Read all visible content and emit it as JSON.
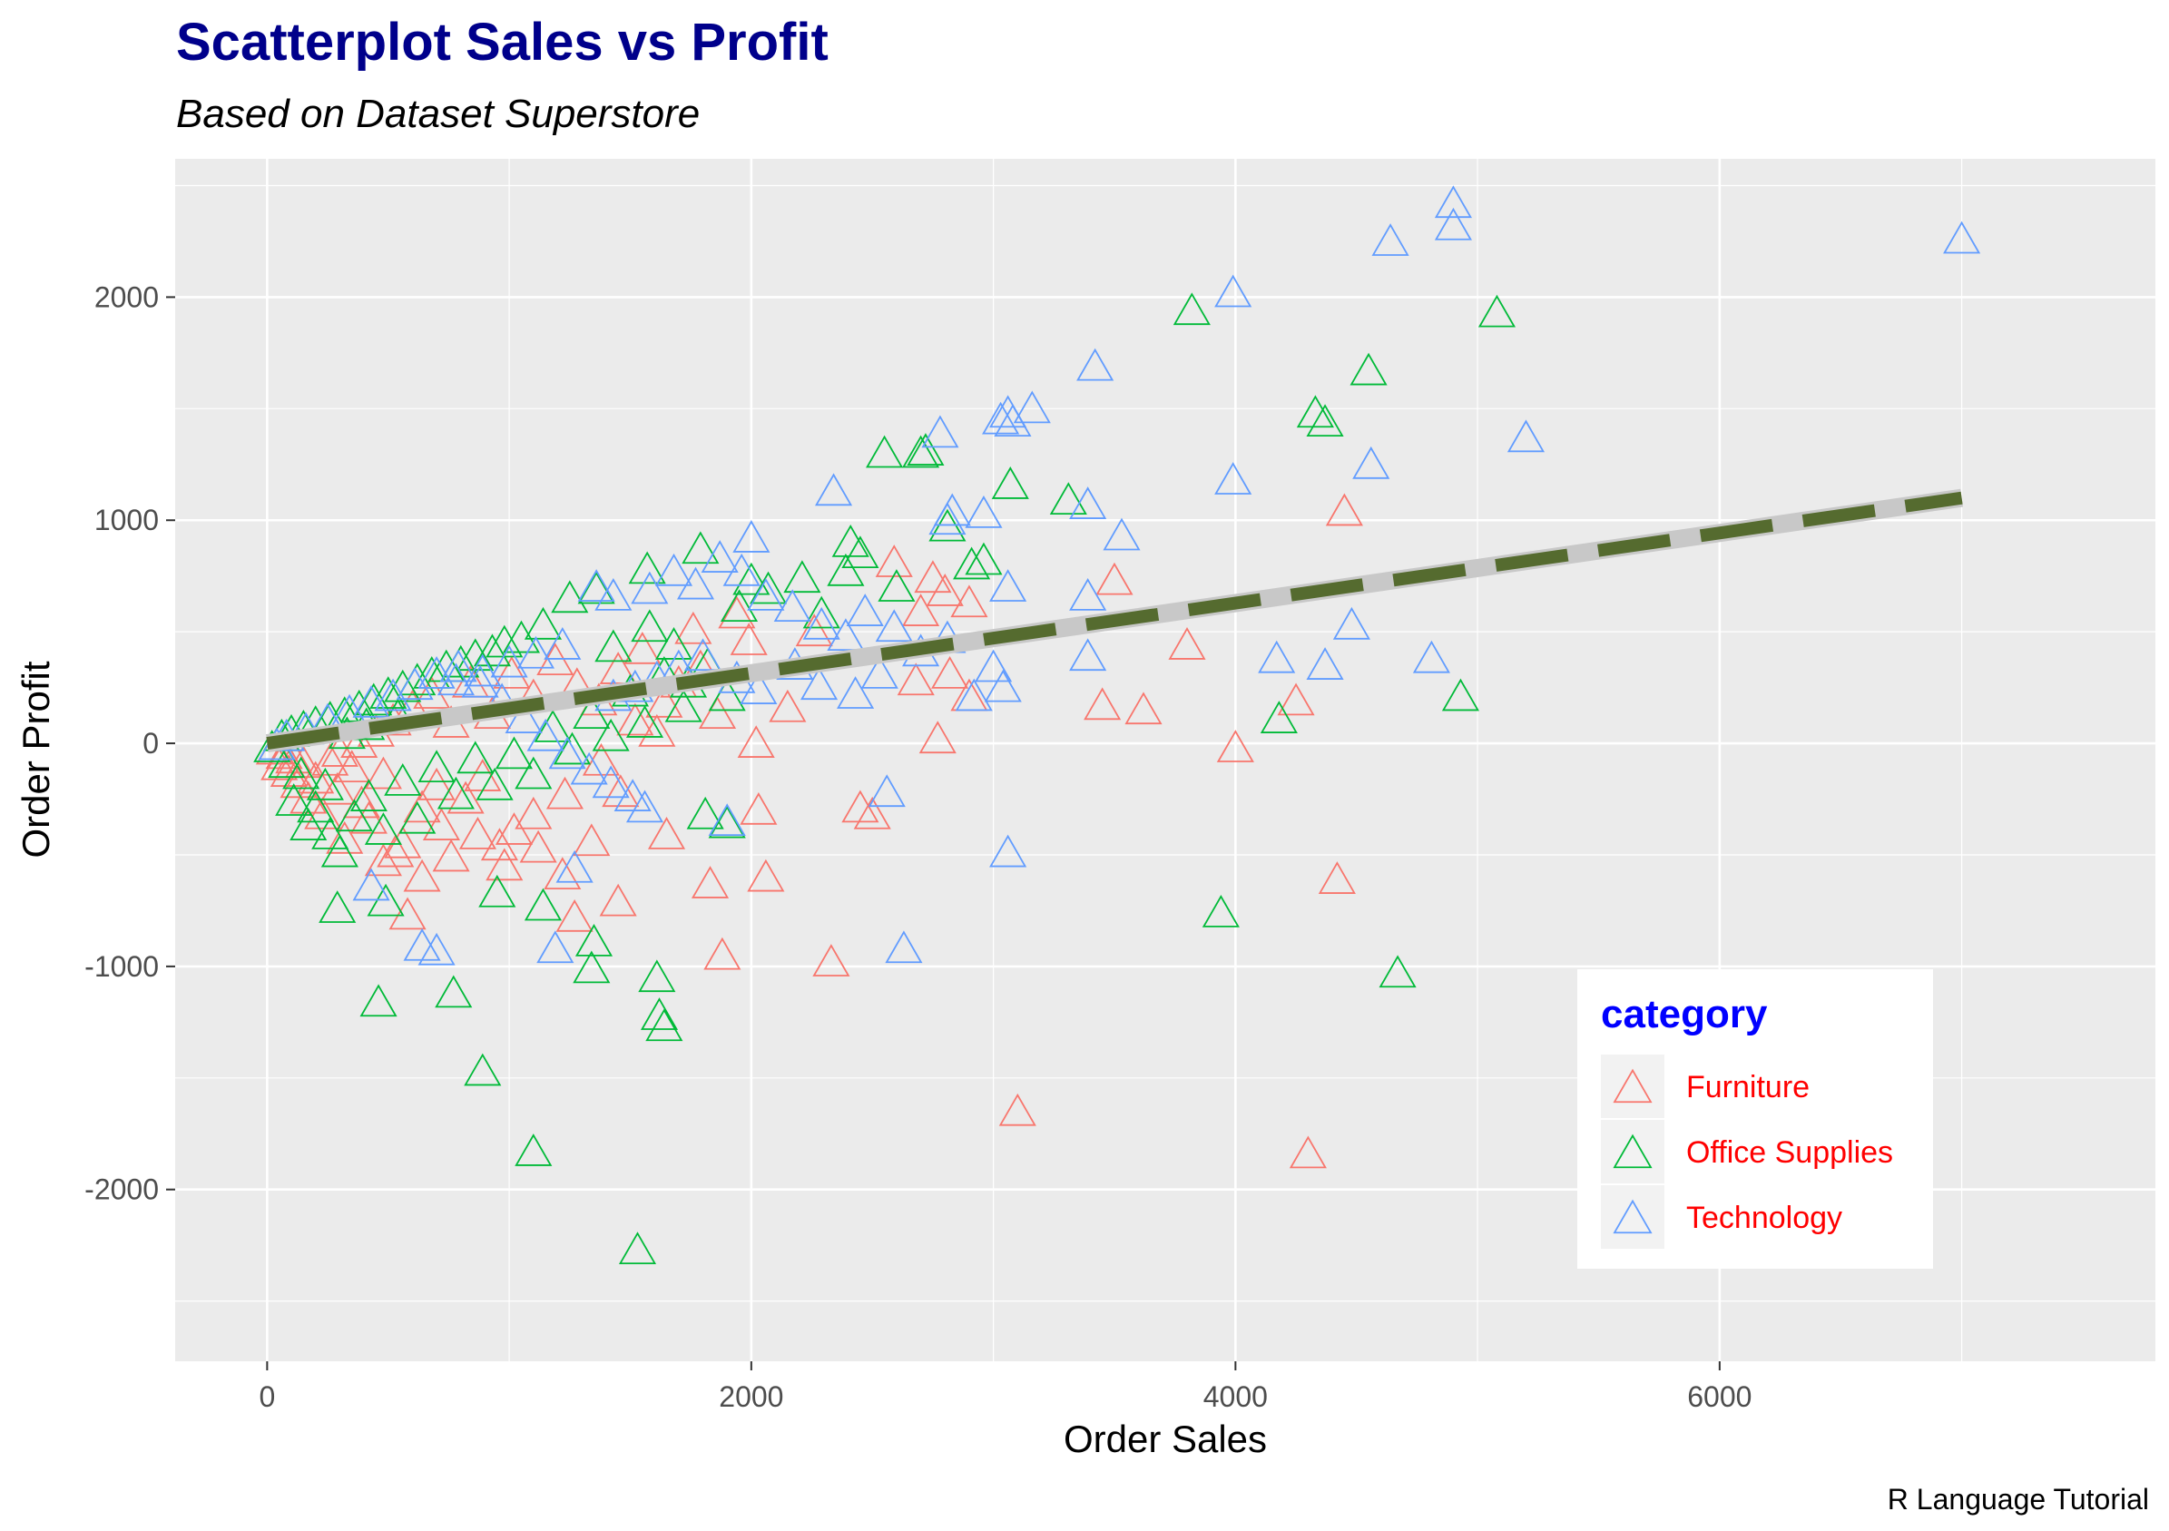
{
  "chart_data": {
    "type": "scatter",
    "title": "Scatterplot Sales vs Profit",
    "subtitle": "Based on Dataset Superstore",
    "xlabel": "Order Sales",
    "ylabel": "Order Profit",
    "caption": "R Language Tutorial",
    "xlim": [
      -380,
      7800
    ],
    "ylim": [
      -2770,
      2620
    ],
    "x_ticks": [
      0,
      2000,
      4000,
      6000
    ],
    "y_ticks": [
      -2000,
      -1000,
      0,
      1000,
      2000
    ],
    "grid": true,
    "marker": "open-triangle",
    "legend": {
      "title": "category",
      "position": "bottom-right"
    },
    "trend_line": {
      "x": [
        0,
        7000
      ],
      "y": [
        0,
        1100
      ],
      "style": "dashed"
    },
    "colors": {
      "title": "#00008b",
      "legend_title": "#0000ff",
      "legend_text": "#ff0000",
      "panel": "#ebebeb",
      "grid": "#ffffff",
      "trend_dash": "#556b2f",
      "trend_band": "#c8c8c8"
    },
    "series": [
      {
        "name": "Furniture",
        "color": "#f8766d",
        "points": [
          [
            4450,
            1030
          ],
          [
            3500,
            720
          ],
          [
            3800,
            430
          ],
          [
            3450,
            160
          ],
          [
            3620,
            140
          ],
          [
            4250,
            180
          ],
          [
            4000,
            -30
          ],
          [
            4420,
            -620
          ],
          [
            4300,
            -1850
          ],
          [
            3100,
            -1660
          ],
          [
            2330,
            -990
          ],
          [
            1880,
            -960
          ],
          [
            2060,
            -610
          ],
          [
            1830,
            -640
          ],
          [
            1650,
            -420
          ],
          [
            2030,
            -310
          ],
          [
            2020,
            -10
          ],
          [
            2450,
            -300
          ],
          [
            2500,
            -330
          ],
          [
            2750,
            730
          ],
          [
            2800,
            670
          ],
          [
            2900,
            620
          ],
          [
            2700,
            580
          ],
          [
            2900,
            200
          ],
          [
            2770,
            10
          ],
          [
            2820,
            300
          ],
          [
            2680,
            270
          ],
          [
            2590,
            800
          ],
          [
            2260,
            490
          ],
          [
            2150,
            150
          ],
          [
            1990,
            450
          ],
          [
            1940,
            570
          ],
          [
            1760,
            500
          ],
          [
            1550,
            410
          ],
          [
            1640,
            170
          ],
          [
            1460,
            -230
          ],
          [
            1340,
            -450
          ],
          [
            1450,
            -720
          ],
          [
            1270,
            -790
          ],
          [
            1380,
            -90
          ],
          [
            1230,
            -240
          ],
          [
            1100,
            -330
          ],
          [
            1020,
            -400
          ],
          [
            960,
            -470
          ],
          [
            890,
            -160
          ],
          [
            820,
            -260
          ],
          [
            760,
            -520
          ],
          [
            700,
            -200
          ],
          [
            640,
            -300
          ],
          [
            580,
            -780
          ],
          [
            530,
            -500
          ],
          [
            480,
            -150
          ],
          [
            420,
            -350
          ],
          [
            390,
            -280
          ],
          [
            350,
            -120
          ],
          [
            320,
            -440
          ],
          [
            290,
            -220
          ],
          [
            260,
            -90
          ],
          [
            230,
            -330
          ],
          [
            200,
            -170
          ],
          [
            170,
            -260
          ],
          [
            150,
            -100
          ],
          [
            130,
            -190
          ],
          [
            110,
            -80
          ],
          [
            90,
            -140
          ],
          [
            70,
            -60
          ],
          [
            50,
            -110
          ],
          [
            30,
            -40
          ],
          [
            300,
            -50
          ],
          [
            380,
            -10
          ],
          [
            450,
            40
          ],
          [
            520,
            90
          ],
          [
            600,
            150
          ],
          [
            680,
            210
          ],
          [
            760,
            80
          ],
          [
            840,
            260
          ],
          [
            930,
            120
          ],
          [
            1010,
            300
          ],
          [
            1100,
            200
          ],
          [
            1190,
            360
          ],
          [
            1280,
            250
          ],
          [
            1370,
            180
          ],
          [
            1450,
            320
          ],
          [
            1520,
            90
          ],
          [
            1610,
            40
          ],
          [
            1700,
            260
          ],
          [
            1790,
            330
          ],
          [
            1860,
            120
          ],
          [
            1220,
            -600
          ],
          [
            1120,
            -480
          ],
          [
            980,
            -560
          ],
          [
            870,
            -420
          ],
          [
            720,
            -380
          ],
          [
            640,
            -610
          ],
          [
            560,
            -460
          ],
          [
            480,
            -540
          ]
        ]
      },
      {
        "name": "Office Supplies",
        "color": "#00ba38",
        "points": [
          [
            5080,
            1920
          ],
          [
            3820,
            1930
          ],
          [
            4550,
            1660
          ],
          [
            4330,
            1470
          ],
          [
            4370,
            1430
          ],
          [
            3070,
            1150
          ],
          [
            3310,
            1080
          ],
          [
            2550,
            1290
          ],
          [
            2700,
            1290
          ],
          [
            2720,
            1300
          ],
          [
            2910,
            790
          ],
          [
            2960,
            810
          ],
          [
            2810,
            960
          ],
          [
            2410,
            890
          ],
          [
            2450,
            840
          ],
          [
            3940,
            -770
          ],
          [
            4670,
            -1040
          ],
          [
            4930,
            200
          ],
          [
            4180,
            100
          ],
          [
            1530,
            -2280
          ],
          [
            1100,
            -1840
          ],
          [
            890,
            -1480
          ],
          [
            770,
            -1130
          ],
          [
            460,
            -1170
          ],
          [
            1610,
            -1060
          ],
          [
            1620,
            -1230
          ],
          [
            1640,
            -1280
          ],
          [
            1350,
            -900
          ],
          [
            1340,
            -1020
          ],
          [
            1140,
            -740
          ],
          [
            950,
            -680
          ],
          [
            490,
            -720
          ],
          [
            290,
            -750
          ],
          [
            1810,
            -330
          ],
          [
            1900,
            -370
          ],
          [
            1790,
            860
          ],
          [
            1570,
            770
          ],
          [
            1580,
            510
          ],
          [
            2000,
            720
          ],
          [
            2070,
            680
          ],
          [
            2210,
            730
          ],
          [
            2290,
            570
          ],
          [
            2390,
            760
          ],
          [
            2600,
            690
          ],
          [
            1950,
            600
          ],
          [
            1740,
            260
          ],
          [
            1680,
            430
          ],
          [
            1430,
            420
          ],
          [
            1360,
            680
          ],
          [
            1250,
            640
          ],
          [
            1140,
            520
          ],
          [
            1050,
            460
          ],
          [
            980,
            440
          ],
          [
            930,
            400
          ],
          [
            860,
            380
          ],
          [
            800,
            350
          ],
          [
            740,
            330
          ],
          [
            680,
            300
          ],
          [
            620,
            270
          ],
          [
            560,
            240
          ],
          [
            500,
            210
          ],
          [
            440,
            180
          ],
          [
            380,
            150
          ],
          [
            320,
            120
          ],
          [
            260,
            100
          ],
          [
            200,
            80
          ],
          [
            150,
            60
          ],
          [
            100,
            40
          ],
          [
            60,
            20
          ],
          [
            20,
            -30
          ],
          [
            80,
            -100
          ],
          [
            140,
            -150
          ],
          [
            200,
            -300
          ],
          [
            260,
            -420
          ],
          [
            300,
            -500
          ],
          [
            360,
            -340
          ],
          [
            420,
            -250
          ],
          [
            480,
            -400
          ],
          [
            560,
            -180
          ],
          [
            620,
            -350
          ],
          [
            700,
            -120
          ],
          [
            780,
            -240
          ],
          [
            860,
            -80
          ],
          [
            940,
            -200
          ],
          [
            1020,
            -60
          ],
          [
            1100,
            -150
          ],
          [
            1180,
            60
          ],
          [
            1260,
            -40
          ],
          [
            1340,
            120
          ],
          [
            1420,
            20
          ],
          [
            1500,
            220
          ],
          [
            1560,
            80
          ],
          [
            1640,
            300
          ],
          [
            1720,
            150
          ],
          [
            1820,
            340
          ],
          [
            1900,
            200
          ],
          [
            170,
            -380
          ],
          [
            110,
            -270
          ],
          [
            240,
            -200
          ],
          [
            330,
            30
          ],
          [
            410,
            70
          ],
          [
            540,
            110
          ]
        ]
      },
      {
        "name": "Technology",
        "color": "#619cff",
        "points": [
          [
            7000,
            2250
          ],
          [
            4900,
            2410
          ],
          [
            4900,
            2310
          ],
          [
            4640,
            2240
          ],
          [
            3990,
            2010
          ],
          [
            3420,
            1680
          ],
          [
            5200,
            1360
          ],
          [
            4560,
            1240
          ],
          [
            3990,
            1170
          ],
          [
            3160,
            1490
          ],
          [
            3060,
            1470
          ],
          [
            3030,
            1440
          ],
          [
            3080,
            1430
          ],
          [
            2780,
            1380
          ],
          [
            2340,
            1120
          ],
          [
            2830,
            1030
          ],
          [
            2960,
            1020
          ],
          [
            2810,
            990
          ],
          [
            3390,
            1060
          ],
          [
            3530,
            920
          ],
          [
            2000,
            910
          ],
          [
            3060,
            690
          ],
          [
            3390,
            650
          ],
          [
            4480,
            520
          ],
          [
            4170,
            370
          ],
          [
            4370,
            340
          ],
          [
            4810,
            370
          ],
          [
            3390,
            380
          ],
          [
            3000,
            330
          ],
          [
            3040,
            240
          ],
          [
            2920,
            200
          ],
          [
            2530,
            300
          ],
          [
            2430,
            210
          ],
          [
            2560,
            -230
          ],
          [
            3060,
            -500
          ],
          [
            2630,
            -930
          ],
          [
            1900,
            -360
          ],
          [
            1270,
            -570
          ],
          [
            1190,
            -930
          ],
          [
            640,
            -920
          ],
          [
            700,
            -940
          ],
          [
            430,
            -650
          ],
          [
            1560,
            -300
          ],
          [
            1510,
            -250
          ],
          [
            1420,
            -190
          ],
          [
            1330,
            -130
          ],
          [
            1240,
            -60
          ],
          [
            1150,
            20
          ],
          [
            1060,
            100
          ],
          [
            970,
            180
          ],
          [
            880,
            260
          ],
          [
            790,
            330
          ],
          [
            700,
            300
          ],
          [
            610,
            250
          ],
          [
            520,
            200
          ],
          [
            430,
            170
          ],
          [
            340,
            130
          ],
          [
            250,
            90
          ],
          [
            160,
            50
          ],
          [
            80,
            20
          ],
          [
            40,
            -20
          ],
          [
            1360,
            690
          ],
          [
            1430,
            650
          ],
          [
            1580,
            680
          ],
          [
            1680,
            760
          ],
          [
            1770,
            700
          ],
          [
            1870,
            820
          ],
          [
            1960,
            760
          ],
          [
            2060,
            650
          ],
          [
            2170,
            600
          ],
          [
            2290,
            520
          ],
          [
            2390,
            470
          ],
          [
            1800,
            380
          ],
          [
            1700,
            330
          ],
          [
            1610,
            280
          ],
          [
            1520,
            240
          ],
          [
            1430,
            200
          ],
          [
            1940,
            280
          ],
          [
            2030,
            230
          ],
          [
            2180,
            340
          ],
          [
            2280,
            250
          ],
          [
            2470,
            580
          ],
          [
            2590,
            510
          ],
          [
            2700,
            400
          ],
          [
            2810,
            460
          ],
          [
            1220,
            430
          ],
          [
            1110,
            390
          ],
          [
            1000,
            350
          ],
          [
            890,
            310
          ],
          [
            780,
            270
          ]
        ]
      }
    ]
  }
}
